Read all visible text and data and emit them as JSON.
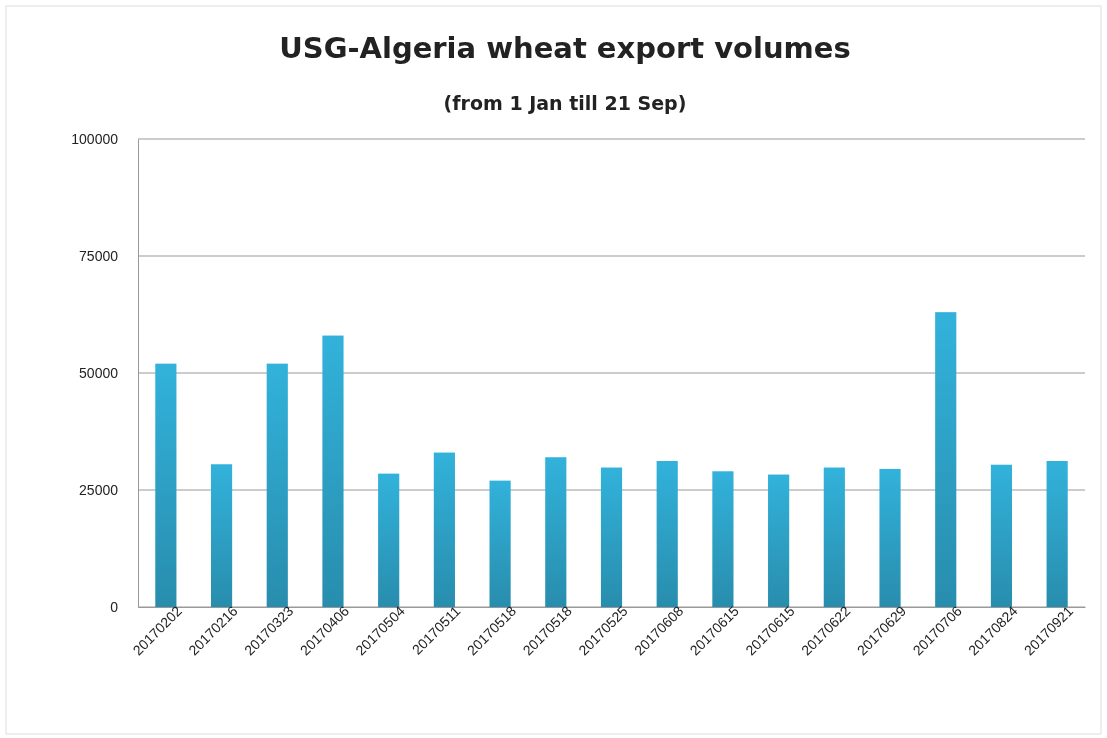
{
  "chart_data": {
    "type": "bar",
    "title": "USG-Algeria wheat export volumes",
    "subtitle": "(from 1 Jan till 21 Sep)",
    "categories": [
      "20170202",
      "20170216",
      "20170323",
      "20170406",
      "20170504",
      "20170511",
      "20170518",
      "20170518",
      "20170525",
      "20170608",
      "20170615",
      "20170615",
      "20170622",
      "20170629",
      "20170706",
      "20170824",
      "20170921"
    ],
    "values": [
      52000,
      30500,
      52000,
      58000,
      28500,
      33000,
      27000,
      32000,
      29800,
      31200,
      29000,
      28300,
      29800,
      29500,
      63000,
      30400,
      31200
    ],
    "color": "#2ea3c8",
    "ylim": [
      0,
      100000
    ],
    "yticks": [
      0,
      25000,
      50000,
      75000,
      100000
    ],
    "grid": "y"
  }
}
